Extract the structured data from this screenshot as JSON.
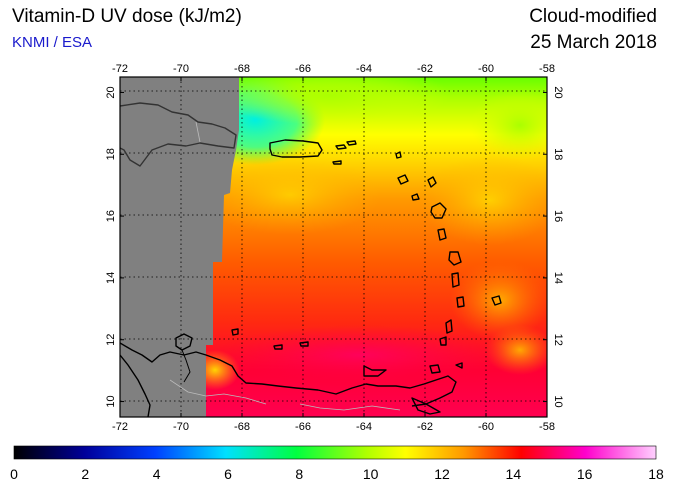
{
  "header": {
    "title": "Vitamin-D UV dose (kJ/m2)",
    "credit": "KNMI / ESA",
    "mode": "Cloud-modified",
    "date": "25 March 2018"
  },
  "map": {
    "lon_range": [
      -72,
      -58
    ],
    "lat_range": [
      9.5,
      20.5
    ],
    "lon_ticks": [
      "-72",
      "-70",
      "-68",
      "-66",
      "-64",
      "-62",
      "-60",
      "-58"
    ],
    "lat_ticks": [
      "10",
      "12",
      "14",
      "16",
      "18",
      "20"
    ],
    "no_data_color": "#808080",
    "coastline_color": "#000000",
    "grid_style": "dotted"
  },
  "colorbar": {
    "min": 0,
    "max": 18,
    "labels": [
      "0",
      "2",
      "4",
      "6",
      "8",
      "10",
      "12",
      "14",
      "16",
      "18"
    ],
    "colors": [
      "#000000",
      "#00008b",
      "#0000ff",
      "#00bfff",
      "#00ffff",
      "#00ff00",
      "#ffff00",
      "#ffa500",
      "#ff0000",
      "#ff00ff",
      "#ffc0ff"
    ]
  }
}
